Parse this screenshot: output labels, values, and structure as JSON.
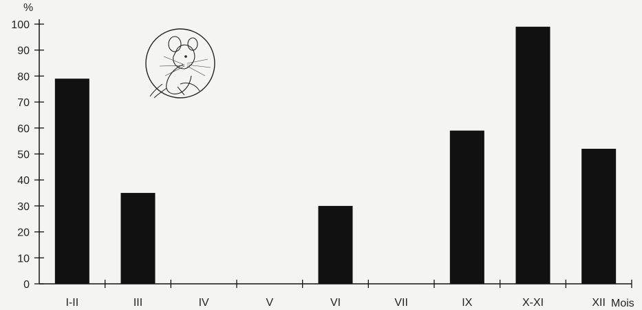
{
  "chart_data": {
    "type": "bar",
    "categories": [
      "I-II",
      "III",
      "IV",
      "V",
      "VI",
      "VII",
      "IX",
      "X-XI",
      "XII"
    ],
    "values": [
      79,
      35,
      0,
      0,
      30,
      0,
      59,
      99,
      52
    ],
    "y_unit_label": "%",
    "xlabel": "Mois",
    "ylabel": "%",
    "ylim": [
      0,
      100
    ],
    "yticks": [
      0,
      10,
      20,
      30,
      40,
      50,
      60,
      70,
      80,
      90,
      100
    ],
    "grid": false,
    "bar_color": "#111111",
    "illustration": "mouse-drawing-in-circle"
  }
}
